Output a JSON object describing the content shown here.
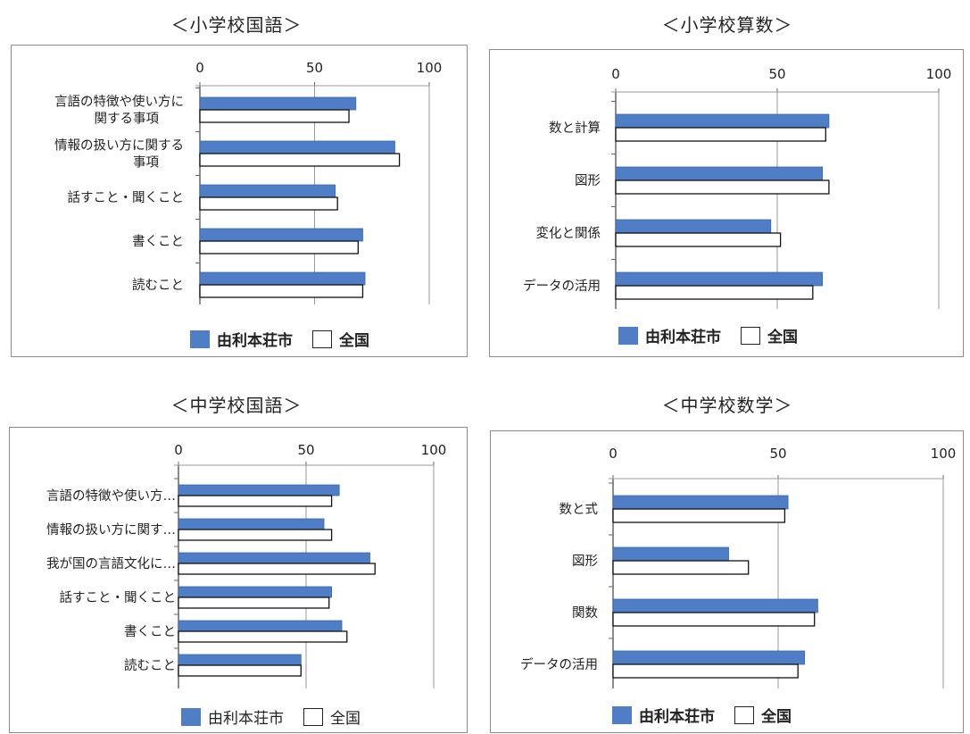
{
  "legend": {
    "city": "由利本荘市",
    "national": "全国"
  },
  "colors": {
    "city": "#4f7ec7",
    "national": "#ffffff"
  },
  "chart_data": [
    {
      "type": "bar",
      "title": "＜小学校国語＞",
      "xlim": [
        0,
        100
      ],
      "ticks": [
        "0",
        "50",
        "100"
      ],
      "categories": [
        [
          "言語の特徴や使い方に",
          "関する事項"
        ],
        [
          "情報の扱い方に関する",
          "事項"
        ],
        [
          "話すこと・聞くこと"
        ],
        [
          "書くこと"
        ],
        [
          "読むこと"
        ]
      ],
      "series": [
        {
          "name": "由利本荘市",
          "values": [
            68,
            85,
            59,
            71,
            72
          ]
        },
        {
          "name": "全国",
          "values": [
            65,
            87,
            60,
            69,
            71
          ]
        }
      ],
      "legend_position": "bottom"
    },
    {
      "type": "bar",
      "title": "＜小学校算数＞",
      "xlim": [
        0,
        100
      ],
      "ticks": [
        "0",
        "50",
        "100"
      ],
      "categories": [
        [
          "数と計算"
        ],
        [
          "図形"
        ],
        [
          "変化と関係"
        ],
        [
          "データの活用"
        ]
      ],
      "series": [
        {
          "name": "由利本荘市",
          "values": [
            66,
            64,
            48,
            64
          ]
        },
        {
          "name": "全国",
          "values": [
            65,
            66,
            51,
            61
          ]
        }
      ],
      "legend_position": "bottom"
    },
    {
      "type": "bar",
      "title": "＜中学校国語＞",
      "xlim": [
        0,
        100
      ],
      "ticks": [
        "0",
        "50",
        "100"
      ],
      "categories": [
        [
          "言語の特徴や使い方…"
        ],
        [
          "情報の扱い方に関す…"
        ],
        [
          "我が国の言語文化に…"
        ],
        [
          "話すこと・聞くこと"
        ],
        [
          "書くこと"
        ],
        [
          "読むこと"
        ]
      ],
      "series": [
        {
          "name": "由利本荘市",
          "values": [
            63,
            57,
            75,
            60,
            64,
            48
          ]
        },
        {
          "name": "全国",
          "values": [
            60,
            60,
            77,
            59,
            66,
            48
          ]
        }
      ],
      "legend_position": "bottom"
    },
    {
      "type": "bar",
      "title": "＜中学校数学＞",
      "xlim": [
        0,
        100
      ],
      "ticks": [
        "0",
        "50",
        "100"
      ],
      "categories": [
        [
          "数と式"
        ],
        [
          "図形"
        ],
        [
          "関数"
        ],
        [
          "データの活用"
        ]
      ],
      "series": [
        {
          "name": "由利本荘市",
          "values": [
            53,
            35,
            62,
            58
          ]
        },
        {
          "name": "全国",
          "values": [
            52,
            41,
            61,
            56
          ]
        }
      ],
      "legend_position": "bottom"
    }
  ]
}
